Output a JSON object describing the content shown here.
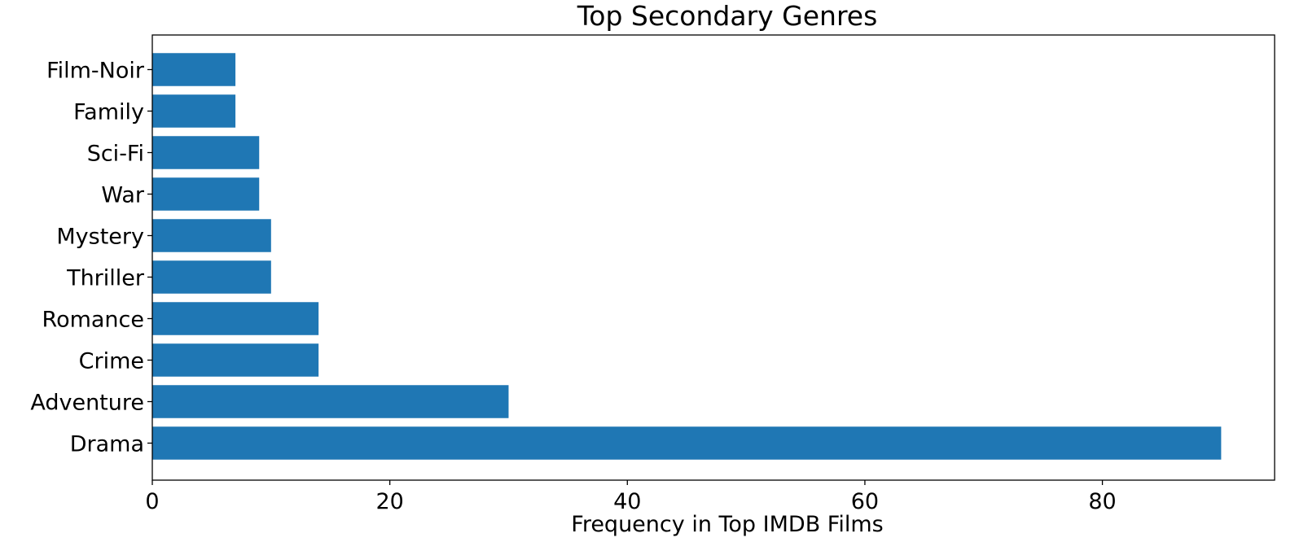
{
  "chart_data": {
    "type": "bar",
    "orientation": "horizontal",
    "title": "Top Secondary Genres",
    "xlabel": "Frequency in Top IMDB Films",
    "ylabel": "",
    "categories": [
      "Drama",
      "Adventure",
      "Crime",
      "Romance",
      "Thriller",
      "Mystery",
      "War",
      "Sci-Fi",
      "Family",
      "Film-Noir"
    ],
    "values": [
      90,
      30,
      14,
      14,
      10,
      10,
      9,
      9,
      7,
      7
    ],
    "xlim": [
      0,
      94.5
    ],
    "xticks": [
      0,
      20,
      40,
      60,
      80
    ],
    "xtick_labels": [
      "0",
      "20",
      "40",
      "60",
      "80"
    ],
    "grid": false,
    "legend": "none",
    "bar_color": "#1f77b4"
  }
}
